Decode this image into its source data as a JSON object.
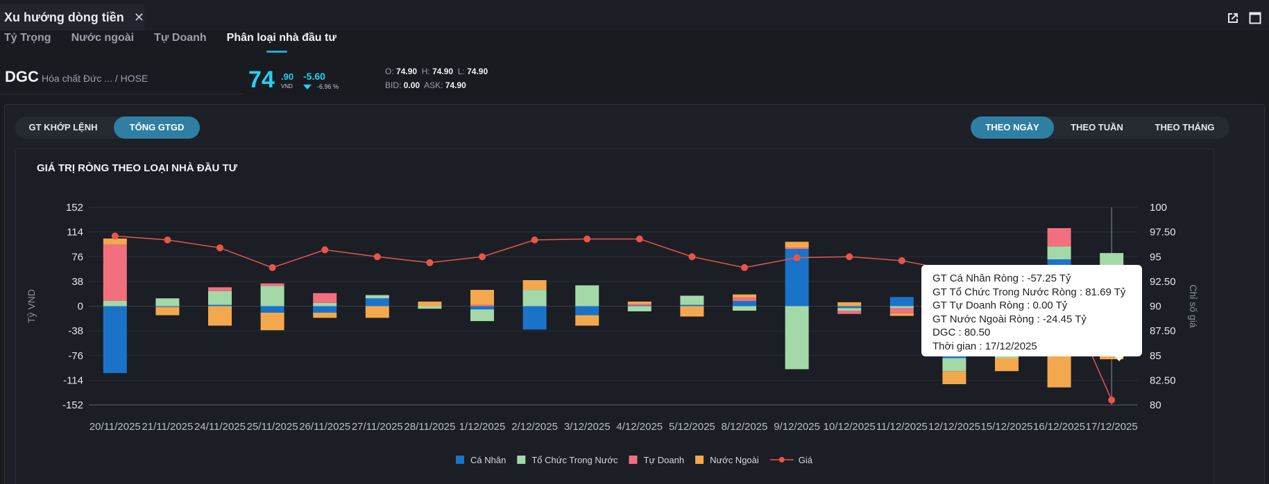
{
  "window": {
    "title": "Xu hướng dòng tiền"
  },
  "subtabs": [
    {
      "label": "Tỷ Trọng",
      "active": false
    },
    {
      "label": "Nước ngoài",
      "active": false
    },
    {
      "label": "Tự Doanh",
      "active": false
    },
    {
      "label": "Phân loại nhà đầu tư",
      "active": true
    }
  ],
  "stock": {
    "symbol": "DGC",
    "company": "Hóa chất Đức ...",
    "exchange": "/ HOSE",
    "price_int": "74",
    "price_dec": ".90",
    "unit": "VND",
    "change": "-5.60",
    "change_pct": "-6.96 %",
    "open_label": "O:",
    "open": "74.90",
    "high_label": "H:",
    "high": "74.90",
    "low_label": "L:",
    "low": "74.90",
    "bid_label": "BID:",
    "bid": "0.00",
    "ask_label": "ASK:",
    "ask": "74.90"
  },
  "value_toggle": {
    "options": [
      "GT KHỚP LỆNH",
      "TỔNG GTGD"
    ],
    "selected": "TỔNG GTGD"
  },
  "period_toggle": {
    "options": [
      "THEO NGÀY",
      "THEO TUẦN",
      "THEO THÁNG"
    ],
    "selected": "THEO NGÀY"
  },
  "colors": {
    "ca_nhan": "#1a73c9",
    "to_chuc": "#a3d9a8",
    "tu_doanh": "#f2707e",
    "nuoc_ngoai": "#f4a84d",
    "gia": "#e8564a",
    "accent": "#2f7ea3",
    "price": "#1ed4f0"
  },
  "tooltip": {
    "lines": [
      "GT Cá Nhân Ròng  : -57.25 Tỷ",
      "GT Tổ Chức Trong Nước Ròng : 81.69 Tỷ",
      "GT Tự Doanh Ròng : 0.00 Tỷ",
      "GT Nước Ngoài Ròng : -24.45 Tỷ",
      "DGC : 80.50",
      "Thời gian : 17/12/2025"
    ]
  },
  "chart_data": {
    "type": "bar",
    "title": "GIÁ TRỊ RÒNG THEO LOẠI NHÀ ĐẦU TƯ",
    "ylabel": "Tỷ VND",
    "y2label": "Chỉ số giá",
    "ylim": [
      -152,
      152
    ],
    "y2lim": [
      80,
      100
    ],
    "yticks": [
      152,
      114,
      76,
      38,
      0,
      -38,
      -76,
      -114,
      -152
    ],
    "y2ticks": [
      "100",
      "97.50",
      "95",
      "92.50",
      "90",
      "87.50",
      "85",
      "82.50",
      "80"
    ],
    "stacked": true,
    "categories": [
      "20/11/2025",
      "21/11/2025",
      "24/11/2025",
      "25/11/2025",
      "26/11/2025",
      "27/11/2025",
      "28/11/2025",
      "1/12/2025",
      "2/12/2025",
      "3/12/2025",
      "4/12/2025",
      "5/12/2025",
      "8/12/2025",
      "9/12/2025",
      "10/12/2025",
      "11/12/2025",
      "12/12/2025",
      "15/12/2025",
      "16/12/2025",
      "17/12/2025"
    ],
    "series": [
      {
        "name": "Cá Nhân",
        "color_key": "ca_nhan",
        "values": [
          -103,
          -1,
          2,
          -10,
          -10,
          12,
          0,
          -5,
          -36,
          -14,
          1,
          2,
          8,
          88,
          -3,
          14,
          -80,
          -60,
          72,
          -57.25
        ]
      },
      {
        "name": "Tổ Chức Trong Nước",
        "color_key": "to_chuc",
        "values": [
          8,
          12,
          21,
          31,
          5,
          5,
          -4,
          -18,
          25,
          32,
          -8,
          14,
          -7,
          -97,
          -4,
          -3,
          -20,
          -20,
          20,
          81.69
        ]
      },
      {
        "name": "Tự Doanh",
        "color_key": "tu_doanh",
        "values": [
          87,
          -1,
          6,
          4,
          15,
          0,
          0,
          2,
          0,
          0,
          2,
          0,
          5,
          2,
          -5,
          -8,
          0,
          0,
          28,
          0
        ]
      },
      {
        "name": "Nước Ngoài",
        "color_key": "nuoc_ngoai",
        "values": [
          9,
          -12,
          -30,
          -27,
          -8,
          -18,
          7,
          23,
          15,
          -16,
          4,
          -16,
          5,
          9,
          6,
          -4,
          -20,
          -20,
          -125,
          -24.45
        ]
      }
    ],
    "line": {
      "name": "Giá",
      "color_key": "gia",
      "values": [
        97.1,
        96.7,
        95.9,
        93.9,
        95.7,
        95,
        94.4,
        95,
        96.7,
        96.8,
        96.8,
        95,
        93.9,
        94.9,
        95,
        94.6,
        93.6,
        93.2,
        92.5,
        80.5
      ]
    },
    "legend": [
      "Cá Nhân",
      "Tổ Chức Trong Nước",
      "Tự Doanh",
      "Nước Ngoài",
      "Giá"
    ],
    "legend_position": "bottom-center"
  }
}
